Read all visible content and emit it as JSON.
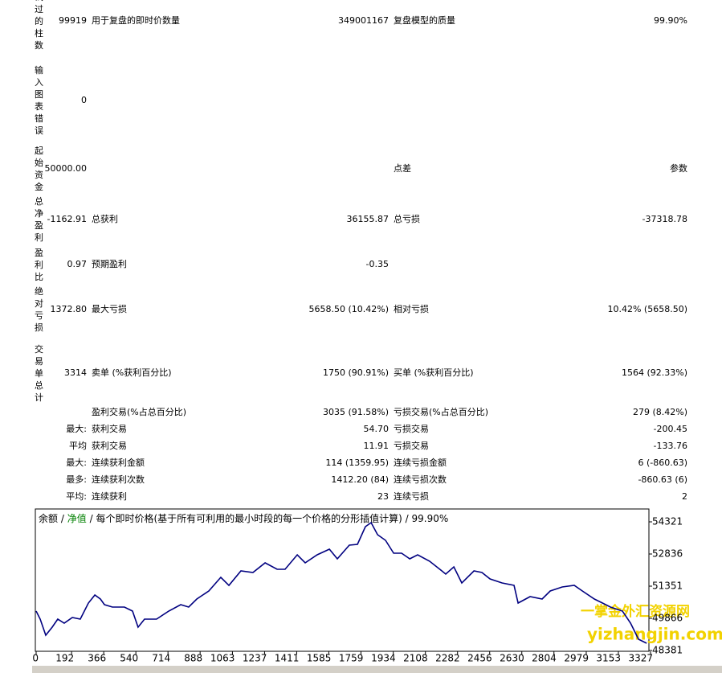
{
  "report": {
    "rows": [
      {
        "label": "试过的柱数",
        "value": "99919",
        "name2": "用于复盘的即时价数量",
        "value2": "349001167",
        "name3": "复盘模型的质量",
        "value3": "99.90%"
      },
      {
        "label": "输入图表错误",
        "value": "0"
      },
      {
        "label": "起始资金",
        "value": "50000.00",
        "name3": "点差",
        "value3": "参数"
      },
      {
        "label": "总净盈利",
        "value": "-1162.91",
        "name2": "总获利",
        "value2": "36155.87",
        "name3": "总亏损",
        "value3": "-37318.78"
      },
      {
        "label": "盈利比",
        "value": "0.97",
        "name2": "预期盈利",
        "value2": "-0.35"
      },
      {
        "label": "绝对亏损",
        "value": "1372.80",
        "name2": "最大亏损",
        "value2": "5658.50 (10.42%)",
        "name3": "相对亏损",
        "value3": "10.42% (5658.50)"
      },
      {
        "label": "交易单总计",
        "value": "3314",
        "name2": "卖单 (%获利百分比)",
        "value2": "1750 (90.91%)",
        "name3": "买单 (%获利百分比)",
        "value3": "1564 (92.33%)"
      },
      {
        "name2": "盈利交易(%占总百分比)",
        "value2": "3035 (91.58%)",
        "name3": "亏损交易(%占总百分比)",
        "value3": "279 (8.42%)"
      },
      {
        "value": "最大:",
        "name2": "获利交易",
        "value2": "54.70",
        "name3": "亏损交易",
        "value3": "-200.45"
      },
      {
        "value": "平均",
        "name2": "获利交易",
        "value2": "11.91",
        "name3": "亏损交易",
        "value3": "-133.76"
      },
      {
        "value": "最大:",
        "name2": "连续获利金额",
        "value2": "114 (1359.95)",
        "name3": "连续亏损金额",
        "value3": "6 (-860.63)"
      },
      {
        "value": "最多:",
        "name2": "连续获利次数",
        "value2": "1412.20 (84)",
        "name3": "连续亏损次数",
        "value3": "-860.63 (6)"
      },
      {
        "value": "平均:",
        "name2": "连续获利",
        "value2": "23",
        "name3": "连续亏损",
        "value3": "2"
      }
    ]
  },
  "chart_data": {
    "type": "line",
    "separator": "/",
    "equity_label": "净值",
    "equity_color": "#008000",
    "subtitle": "每个即时价格(基于所有可利用的最小时段的每一个价格的分形插值计算)",
    "model_quality": "99.90%",
    "x": [
      0,
      22,
      52,
      87,
      117,
      152,
      196,
      239,
      283,
      318,
      348,
      370,
      413,
      478,
      522,
      552,
      587,
      652,
      718,
      783,
      826,
      870,
      935,
      1000,
      1044,
      1109,
      1174,
      1240,
      1305,
      1348,
      1414,
      1457,
      1522,
      1588,
      1631,
      1696,
      1740,
      1783,
      1814,
      1849,
      1892,
      1936,
      1979,
      2023,
      2066,
      2131,
      2197,
      2218,
      2262,
      2305,
      2371,
      2414,
      2458,
      2523,
      2588,
      2610,
      2675,
      2740,
      2784,
      2849,
      2914,
      2958,
      3023,
      3067,
      3110,
      3175,
      3219,
      3262,
      3306
    ],
    "series": [
      {
        "name": "余额",
        "color": "#000080",
        "values": [
          50200,
          49829,
          49086,
          49458,
          49829,
          49643,
          49903,
          49829,
          50571,
          50943,
          50757,
          50497,
          50386,
          50386,
          50200,
          49458,
          49829,
          49829,
          50200,
          50497,
          50386,
          50757,
          51128,
          51759,
          51388,
          52056,
          51982,
          52428,
          52131,
          52131,
          52799,
          52428,
          52799,
          53059,
          52613,
          53244,
          53282,
          54098,
          54284,
          53727,
          53467,
          52873,
          52873,
          52613,
          52799,
          52502,
          52056,
          51908,
          52242,
          51499,
          52056,
          51982,
          51685,
          51499,
          51388,
          50571,
          50868,
          50757,
          51128,
          51314,
          51388,
          51128,
          50757,
          50571,
          50386,
          50200,
          49643,
          48901,
          48715
        ]
      }
    ],
    "xlim": [
      0,
      3314
    ],
    "ylim": [
      48344,
      54841
    ],
    "xticks": [
      0,
      192,
      366,
      540,
      714,
      888,
      1063,
      1237,
      1411,
      1585,
      1759,
      1934,
      2108,
      2282,
      2456,
      2630,
      2804,
      2979,
      3153,
      3327
    ],
    "yticks": [
      54321,
      52836,
      51351,
      49866,
      48381
    ],
    "grid": false
  },
  "watermark": {
    "line1": "一掌金外汇资源网",
    "line2": "yizhangjin.com"
  }
}
